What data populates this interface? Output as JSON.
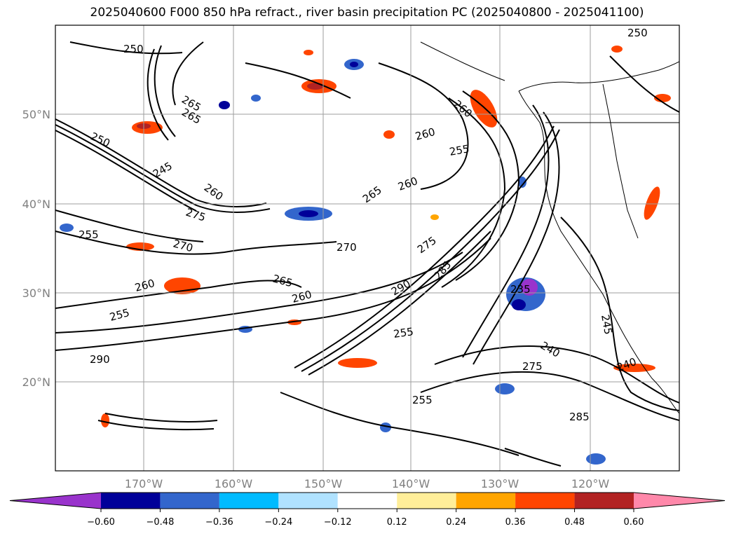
{
  "title": "2025040600 F000 850 hPa refract., river basin precipitation PC (2025040800 - 2025041100)",
  "map": {
    "lat_labels": [
      "50°N",
      "40°N",
      "30°N",
      "20°N"
    ],
    "lon_labels": [
      "170°W",
      "160°W",
      "150°W",
      "140°W",
      "130°W",
      "120°W"
    ],
    "contour_labels": [
      "250",
      "265",
      "265",
      "250",
      "245",
      "260",
      "275",
      "270",
      "255",
      "260",
      "265",
      "260",
      "265",
      "270",
      "290",
      "285",
      "255",
      "260",
      "255",
      "260",
      "275",
      "235",
      "290",
      "255",
      "240",
      "275",
      "245",
      "240",
      "285",
      "250",
      "255",
      "260"
    ],
    "colors": {
      "contour": "#000000",
      "gridline": "#9e9e9e",
      "coast": "#000000"
    }
  },
  "colorbar": {
    "colors": [
      "#9933cc",
      "#000099",
      "#3366cc",
      "#00bbff",
      "#b0e2ff",
      "#ffffff",
      "#ffee99",
      "#ffa500",
      "#ff4500",
      "#b22222",
      "#ff88aa"
    ],
    "tick_labels": [
      "−0.60",
      "−0.48",
      "−0.36",
      "−0.24",
      "−0.12",
      "0.12",
      "0.24",
      "0.36",
      "0.48",
      "0.60"
    ],
    "extend": "both"
  }
}
